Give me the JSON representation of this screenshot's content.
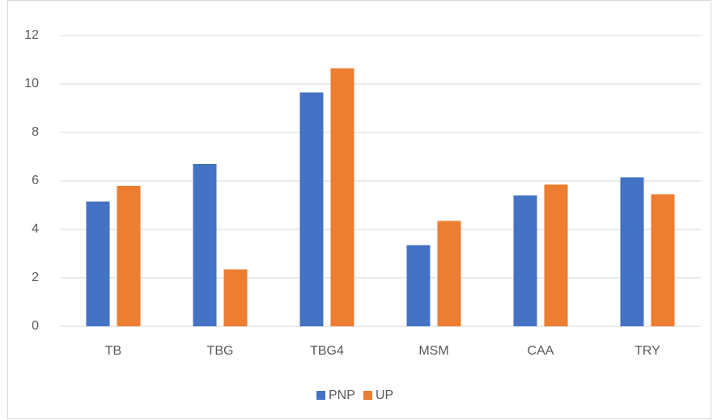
{
  "chart_data": {
    "type": "bar",
    "categories": [
      "TB",
      "TBG",
      "TBG4",
      "MSM",
      "CAA",
      "TRY"
    ],
    "series": [
      {
        "name": "PNP",
        "color": "#4472c4",
        "values": [
          5.15,
          6.7,
          9.65,
          3.35,
          5.4,
          6.15
        ]
      },
      {
        "name": "UP",
        "color": "#ed7d31",
        "values": [
          5.8,
          2.35,
          10.65,
          4.35,
          5.85,
          5.45
        ]
      }
    ],
    "ylim": [
      0,
      12
    ],
    "yticks": [
      0,
      2,
      4,
      6,
      8,
      10,
      12
    ],
    "grid": true,
    "legend": "bottom"
  }
}
